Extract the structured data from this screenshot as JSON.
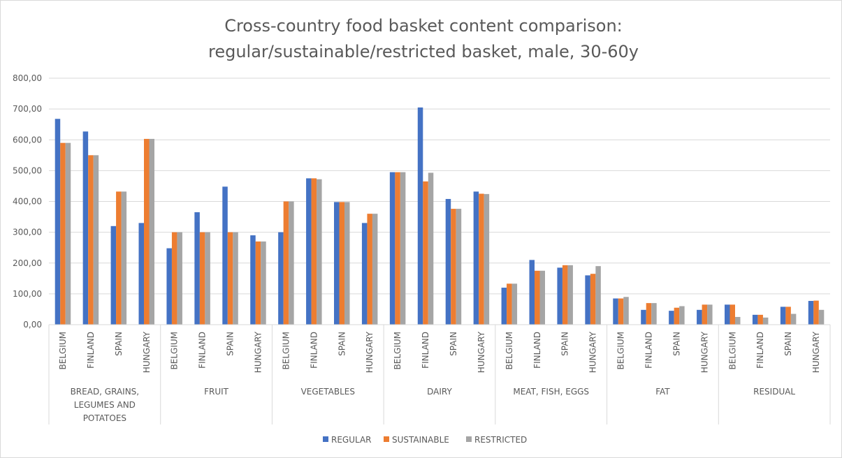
{
  "chart_data": {
    "type": "bar",
    "title_lines": [
      "Cross-country food basket content comparison:",
      "regular/sustainable/restricted basket, male, 30-60y"
    ],
    "ylim": [
      0,
      800
    ],
    "y_ticks": [
      "0,00",
      "100,00",
      "200,00",
      "300,00",
      "400,00",
      "500,00",
      "600,00",
      "700,00",
      "800,00"
    ],
    "grid": true,
    "legend_position": "bottom",
    "groups": [
      {
        "name_lines": [
          "BREAD, GRAINS,",
          "LEGUMES AND",
          "POTATOES"
        ],
        "countries": [
          "BELGIUM",
          "FINLAND",
          "SPAIN",
          "HUNGARY"
        ]
      },
      {
        "name_lines": [
          "FRUIT"
        ],
        "countries": [
          "BELGIUM",
          "FINLAND",
          "SPAIN",
          "HUNGARY"
        ]
      },
      {
        "name_lines": [
          "VEGETABLES"
        ],
        "countries": [
          "BELGIUM",
          "FINLAND",
          "SPAIN",
          "HUNGARY"
        ]
      },
      {
        "name_lines": [
          "DAIRY"
        ],
        "countries": [
          "BELGIUM",
          "FINLAND",
          "SPAIN",
          "HUNGARY"
        ]
      },
      {
        "name_lines": [
          "MEAT, FISH, EGGS"
        ],
        "countries": [
          "BELGIUM",
          "FINLAND",
          "SPAIN",
          "HUNGARY"
        ]
      },
      {
        "name_lines": [
          "FAT"
        ],
        "countries": [
          "BELGIUM",
          "FINLAND",
          "SPAIN",
          "HUNGARY"
        ]
      },
      {
        "name_lines": [
          "RESIDUAL"
        ],
        "countries": [
          "BELGIUM",
          "FINLAND",
          "SPAIN",
          "HUNGARY"
        ]
      }
    ],
    "series": [
      {
        "name": "REGULAR",
        "color": "#4472C4",
        "values": [
          668,
          627,
          320,
          330,
          248,
          365,
          448,
          290,
          300,
          475,
          398,
          330,
          495,
          705,
          408,
          432,
          120,
          210,
          185,
          160,
          85,
          48,
          45,
          48,
          65,
          32,
          58,
          77
        ]
      },
      {
        "name": "SUSTAINABLE",
        "color": "#ED7D31",
        "values": [
          590,
          550,
          432,
          603,
          300,
          300,
          300,
          270,
          400,
          475,
          398,
          360,
          495,
          465,
          376,
          425,
          133,
          175,
          193,
          165,
          85,
          70,
          55,
          65,
          65,
          32,
          58,
          78
        ]
      },
      {
        "name": "RESTRICTED",
        "color": "#A5A5A5",
        "values": [
          590,
          550,
          432,
          603,
          300,
          300,
          300,
          270,
          400,
          472,
          398,
          360,
          495,
          493,
          376,
          424,
          133,
          175,
          193,
          190,
          90,
          70,
          60,
          65,
          25,
          23,
          35,
          48
        ]
      }
    ]
  }
}
